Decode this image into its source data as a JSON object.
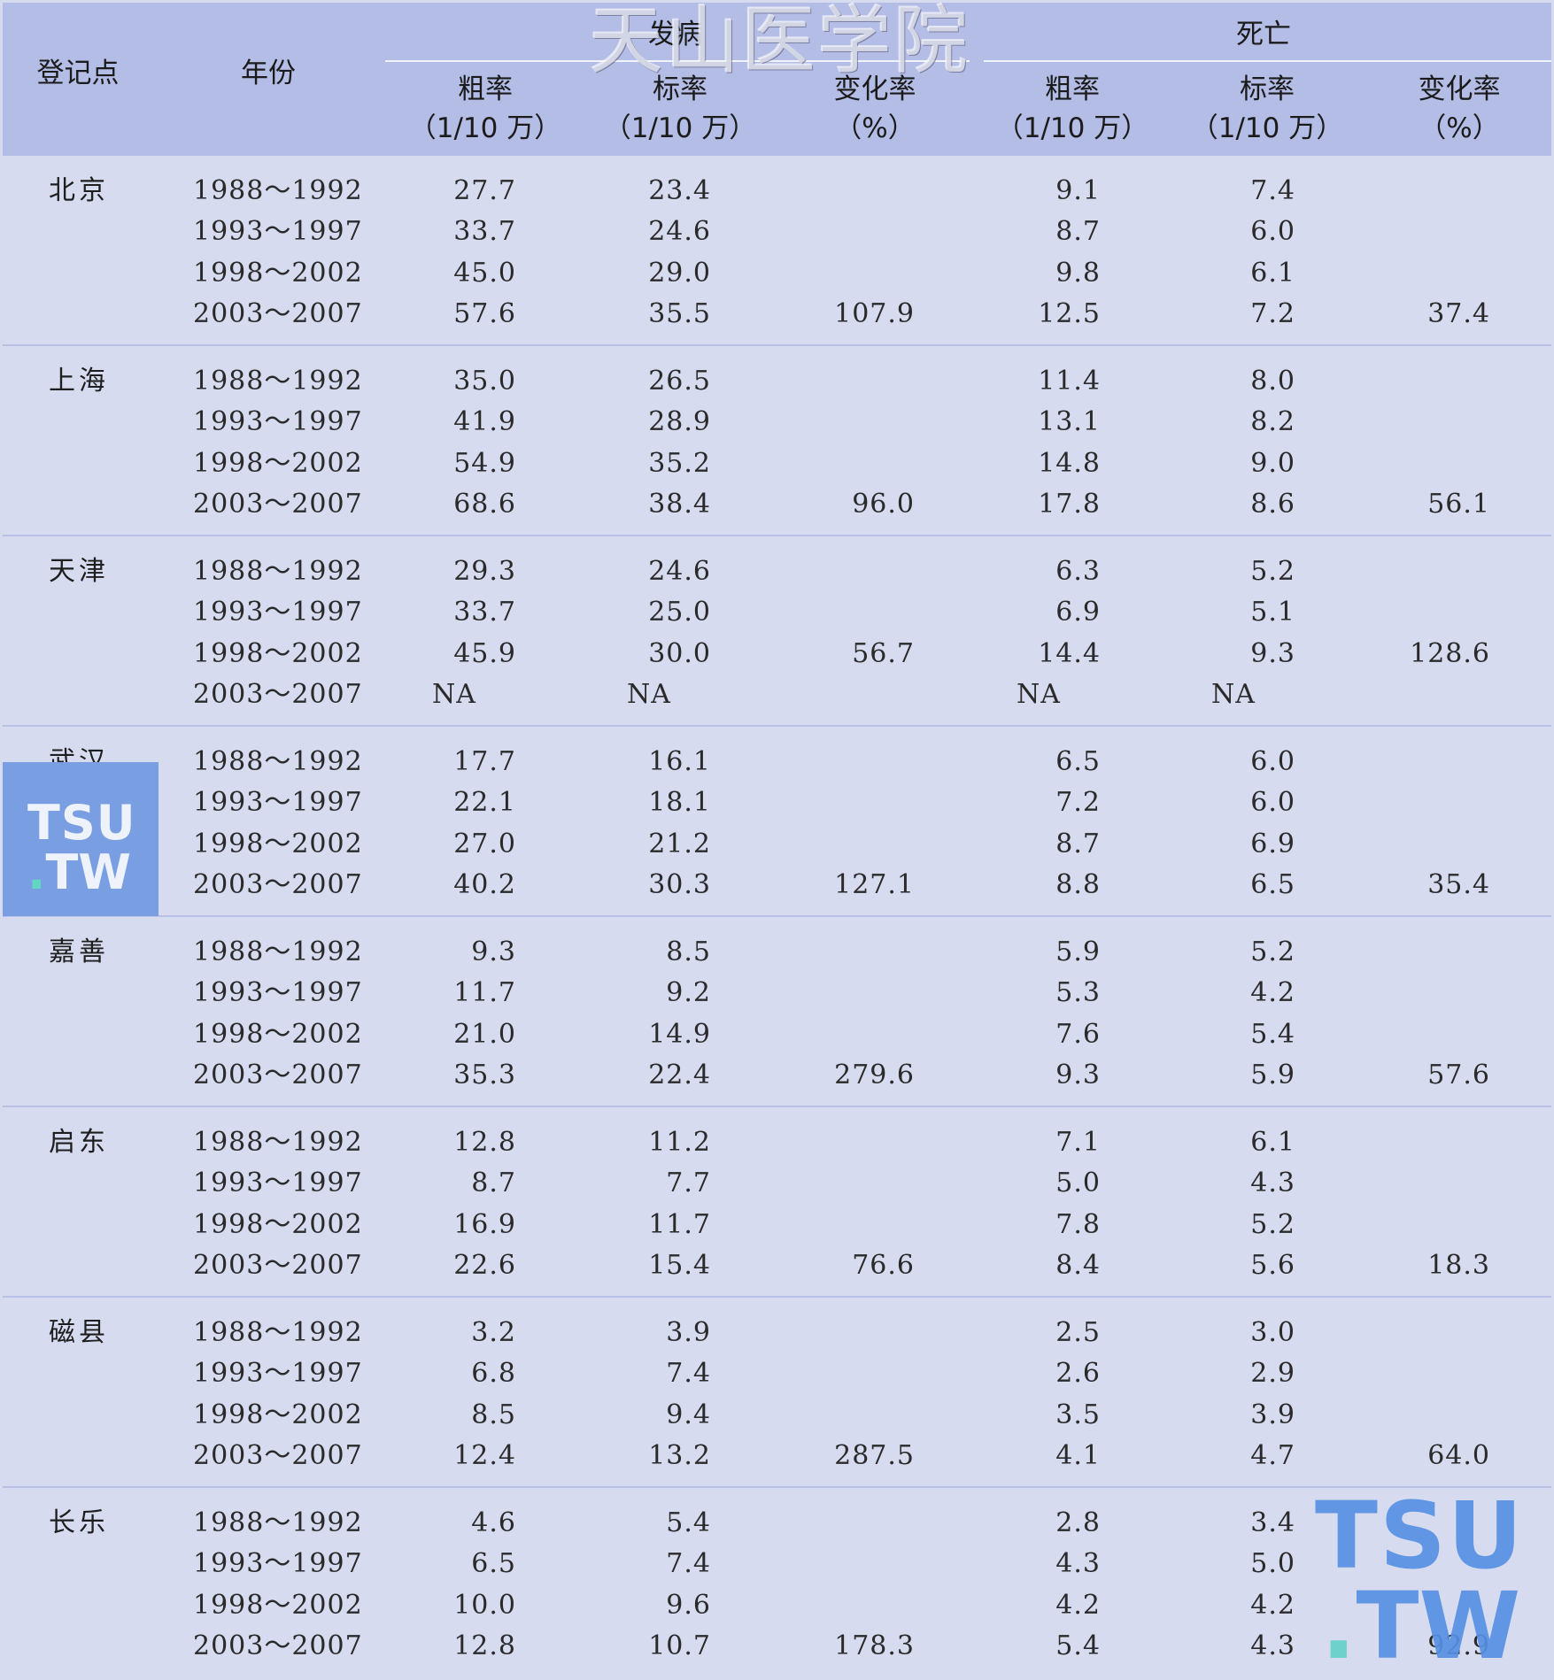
{
  "header": {
    "station": "登记点",
    "year": "年份",
    "incidence": "发病",
    "mortality": "死亡",
    "crude_rate": "粗率",
    "std_rate": "标率",
    "change_rate": "变化率",
    "unit_rate": "（1/10 万）",
    "unit_pct": "（%）"
  },
  "groups": [
    {
      "station": "北京",
      "rows": [
        {
          "year": "1988～1992",
          "c1": "27.7",
          "c2": "23.4",
          "c3": "",
          "c4": "9.1",
          "c5": "7.4",
          "c6": ""
        },
        {
          "year": "1993～1997",
          "c1": "33.7",
          "c2": "24.6",
          "c3": "",
          "c4": "8.7",
          "c5": "6.0",
          "c6": ""
        },
        {
          "year": "1998～2002",
          "c1": "45.0",
          "c2": "29.0",
          "c3": "",
          "c4": "9.8",
          "c5": "6.1",
          "c6": ""
        },
        {
          "year": "2003～2007",
          "c1": "57.6",
          "c2": "35.5",
          "c3": "107.9",
          "c4": "12.5",
          "c5": "7.2",
          "c6": "37.4"
        }
      ]
    },
    {
      "station": "上海",
      "rows": [
        {
          "year": "1988～1992",
          "c1": "35.0",
          "c2": "26.5",
          "c3": "",
          "c4": "11.4",
          "c5": "8.0",
          "c6": ""
        },
        {
          "year": "1993～1997",
          "c1": "41.9",
          "c2": "28.9",
          "c3": "",
          "c4": "13.1",
          "c5": "8.2",
          "c6": ""
        },
        {
          "year": "1998～2002",
          "c1": "54.9",
          "c2": "35.2",
          "c3": "",
          "c4": "14.8",
          "c5": "9.0",
          "c6": ""
        },
        {
          "year": "2003～2007",
          "c1": "68.6",
          "c2": "38.4",
          "c3": "96.0",
          "c4": "17.8",
          "c5": "8.6",
          "c6": "56.1"
        }
      ]
    },
    {
      "station": "天津",
      "rows": [
        {
          "year": "1988～1992",
          "c1": "29.3",
          "c2": "24.6",
          "c3": "",
          "c4": "6.3",
          "c5": "5.2",
          "c6": ""
        },
        {
          "year": "1993～1997",
          "c1": "33.7",
          "c2": "25.0",
          "c3": "",
          "c4": "6.9",
          "c5": "5.1",
          "c6": ""
        },
        {
          "year": "1998～2002",
          "c1": "45.9",
          "c2": "30.0",
          "c3": "56.7",
          "c4": "14.4",
          "c5": "9.3",
          "c6": "128.6"
        },
        {
          "year": "2003～2007",
          "c1": "NA",
          "c2": "NA",
          "c3": "",
          "c4": "NA",
          "c5": "NA",
          "c6": ""
        }
      ]
    },
    {
      "station": "武汉",
      "rows": [
        {
          "year": "1988～1992",
          "c1": "17.7",
          "c2": "16.1",
          "c3": "",
          "c4": "6.5",
          "c5": "6.0",
          "c6": ""
        },
        {
          "year": "1993～1997",
          "c1": "22.1",
          "c2": "18.1",
          "c3": "",
          "c4": "7.2",
          "c5": "6.0",
          "c6": ""
        },
        {
          "year": "1998～2002",
          "c1": "27.0",
          "c2": "21.2",
          "c3": "",
          "c4": "8.7",
          "c5": "6.9",
          "c6": ""
        },
        {
          "year": "2003～2007",
          "c1": "40.2",
          "c2": "30.3",
          "c3": "127.1",
          "c4": "8.8",
          "c5": "6.5",
          "c6": "35.4"
        }
      ]
    },
    {
      "station": "嘉善",
      "rows": [
        {
          "year": "1988～1992",
          "c1": "9.3",
          "c2": "8.5",
          "c3": "",
          "c4": "5.9",
          "c5": "5.2",
          "c6": ""
        },
        {
          "year": "1993～1997",
          "c1": "11.7",
          "c2": "9.2",
          "c3": "",
          "c4": "5.3",
          "c5": "4.2",
          "c6": ""
        },
        {
          "year": "1998～2002",
          "c1": "21.0",
          "c2": "14.9",
          "c3": "",
          "c4": "7.6",
          "c5": "5.4",
          "c6": ""
        },
        {
          "year": "2003～2007",
          "c1": "35.3",
          "c2": "22.4",
          "c3": "279.6",
          "c4": "9.3",
          "c5": "5.9",
          "c6": "57.6"
        }
      ]
    },
    {
      "station": "启东",
      "rows": [
        {
          "year": "1988～1992",
          "c1": "12.8",
          "c2": "11.2",
          "c3": "",
          "c4": "7.1",
          "c5": "6.1",
          "c6": ""
        },
        {
          "year": "1993～1997",
          "c1": "8.7",
          "c2": "7.7",
          "c3": "",
          "c4": "5.0",
          "c5": "4.3",
          "c6": ""
        },
        {
          "year": "1998～2002",
          "c1": "16.9",
          "c2": "11.7",
          "c3": "",
          "c4": "7.8",
          "c5": "5.2",
          "c6": ""
        },
        {
          "year": "2003～2007",
          "c1": "22.6",
          "c2": "15.4",
          "c3": "76.6",
          "c4": "8.4",
          "c5": "5.6",
          "c6": "18.3"
        }
      ]
    },
    {
      "station": "磁县",
      "rows": [
        {
          "year": "1988～1992",
          "c1": "3.2",
          "c2": "3.9",
          "c3": "",
          "c4": "2.5",
          "c5": "3.0",
          "c6": ""
        },
        {
          "year": "1993～1997",
          "c1": "6.8",
          "c2": "7.4",
          "c3": "",
          "c4": "2.6",
          "c5": "2.9",
          "c6": ""
        },
        {
          "year": "1998～2002",
          "c1": "8.5",
          "c2": "9.4",
          "c3": "",
          "c4": "3.5",
          "c5": "3.9",
          "c6": ""
        },
        {
          "year": "2003～2007",
          "c1": "12.4",
          "c2": "13.2",
          "c3": "287.5",
          "c4": "4.1",
          "c5": "4.7",
          "c6": "64.0"
        }
      ]
    },
    {
      "station": "长乐",
      "rows": [
        {
          "year": "1988～1992",
          "c1": "4.6",
          "c2": "5.4",
          "c3": "",
          "c4": "2.8",
          "c5": "3.4",
          "c6": ""
        },
        {
          "year": "1993～1997",
          "c1": "6.5",
          "c2": "7.4",
          "c3": "",
          "c4": "4.3",
          "c5": "5.0",
          "c6": ""
        },
        {
          "year": "1998～2002",
          "c1": "10.0",
          "c2": "9.6",
          "c3": "",
          "c4": "4.2",
          "c5": "4.2",
          "c6": ""
        },
        {
          "year": "2003～2007",
          "c1": "12.8",
          "c2": "10.7",
          "c3": "178.3",
          "c4": "5.4",
          "c5": "4.3",
          "c6": "92.9"
        }
      ]
    }
  ],
  "watermarks": {
    "site_name": "天山医学院",
    "logo_line1": "TSU",
    "logo_dot": ".",
    "logo_line2": "TW"
  }
}
